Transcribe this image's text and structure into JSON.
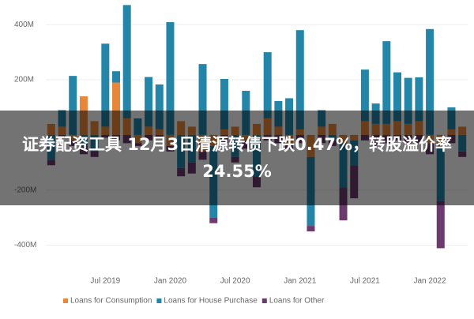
{
  "banner": "证券配资工具 12月3日清源转债下跌0.47%，转股溢价率24.55%",
  "chart_data": {
    "type": "stacked-bar",
    "categories": [
      null,
      null,
      null,
      null,
      null,
      "Jul 2019",
      null,
      null,
      null,
      null,
      null,
      "Jan 2020",
      null,
      null,
      null,
      null,
      null,
      "Jul 2020",
      null,
      null,
      null,
      null,
      null,
      "Jan 2021",
      null,
      null,
      null,
      null,
      null,
      "Jul 2021",
      null,
      null,
      null,
      null,
      null,
      "Jan 2022",
      null,
      null,
      null
    ],
    "series": [
      {
        "name": "Loans for Consumption",
        "color": "#e8873a",
        "values": [
          40,
          30,
          -20,
          140,
          50,
          30,
          190,
          60,
          -30,
          30,
          20,
          -40,
          50,
          30,
          -60,
          -40,
          20,
          30,
          -20,
          40,
          60,
          30,
          -30,
          20,
          -80,
          30,
          40,
          -30,
          -20,
          50,
          40,
          40,
          50,
          40,
          50,
          -30,
          -40,
          20,
          30
        ]
      },
      {
        "name": "Loans for House Purchase",
        "color": "#2386a8",
        "values": [
          -90,
          60,
          214,
          -40,
          -60,
          301,
          41,
          411,
          60,
          180,
          163,
          409,
          -120,
          -100,
          257,
          -260,
          183,
          -80,
          160,
          -150,
          240,
          93,
          133,
          360,
          -250,
          60,
          -20,
          -160,
          -90,
          187,
          74,
          300,
          177,
          167,
          159,
          384,
          -200,
          80,
          -60
        ]
      },
      {
        "name": "Loans for Other",
        "color": "#6b3a6f",
        "values": [
          -20,
          -10,
          -20,
          -30,
          -20,
          -10,
          -20,
          -30,
          -10,
          -20,
          -10,
          -20,
          -30,
          -40,
          -30,
          -20,
          -30,
          -20,
          -30,
          -40,
          -20,
          -30,
          -20,
          -30,
          -20,
          -30,
          -20,
          -120,
          -120,
          -20,
          -40,
          -30,
          -20,
          -30,
          -30,
          -40,
          -171,
          -30,
          -20
        ]
      }
    ],
    "ylim": [
      -450,
      475
    ],
    "yticks": [
      {
        "value": -400,
        "label": "-400M"
      },
      {
        "value": -200,
        "label": "-200M"
      },
      {
        "value": 200,
        "label": "200M"
      },
      {
        "value": 400,
        "label": "400M"
      }
    ],
    "grid": true,
    "legend": "bottom"
  }
}
